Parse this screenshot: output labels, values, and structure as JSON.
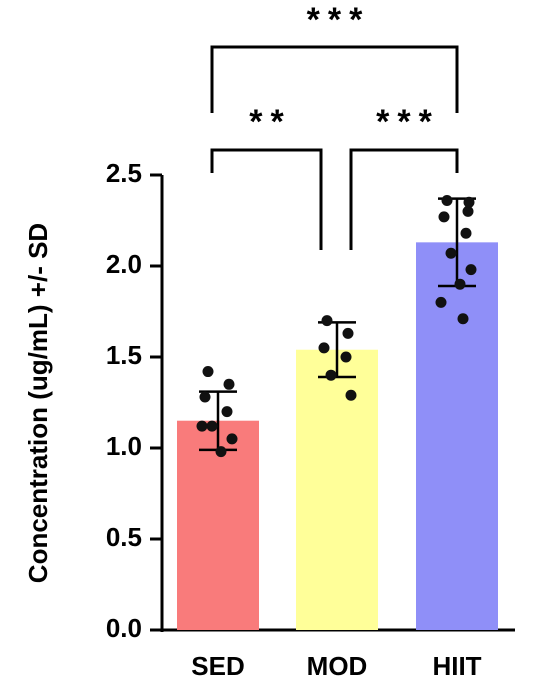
{
  "chart_data": {
    "type": "bar",
    "ylabel": "Concentration (ug/mL) +/- SD",
    "xlabel": "",
    "ylim": [
      0,
      2.5
    ],
    "yticks": [
      "0.0",
      "0.5",
      "1.0",
      "1.5",
      "2.0",
      "2.5"
    ],
    "grid": false,
    "legend": "none",
    "categories": [
      "SED",
      "MOD",
      "HIIT"
    ],
    "values": [
      1.15,
      1.54,
      2.13
    ],
    "sd": [
      0.16,
      0.15,
      0.24
    ],
    "colors": [
      "#f97b7b",
      "#ffff99",
      "#8f8ff8"
    ],
    "points": [
      [
        1.42,
        1.35,
        1.28,
        1.2,
        1.12,
        1.05,
        0.98,
        1.12
      ],
      [
        1.7,
        1.63,
        1.55,
        1.5,
        1.4,
        1.29
      ],
      [
        2.36,
        2.3,
        2.27,
        2.18,
        2.07,
        1.98,
        1.9,
        1.8,
        1.71,
        2.35
      ]
    ],
    "significance": [
      {
        "from": "SED",
        "to": "MOD",
        "label": "**"
      },
      {
        "from": "MOD",
        "to": "HIIT",
        "label": "***"
      },
      {
        "from": "SED",
        "to": "HIIT",
        "label": "***"
      }
    ]
  }
}
